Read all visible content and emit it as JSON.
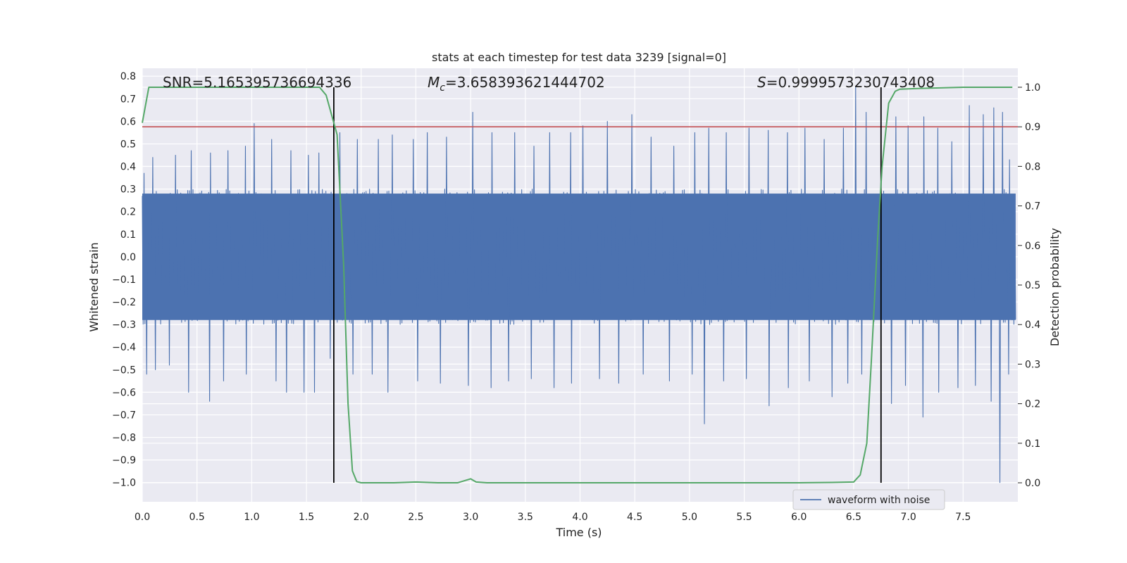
{
  "chart_data": {
    "type": "line",
    "title": "stats at each timestep for test data 3239 [signal=0]",
    "xlabel": "Time (s)",
    "ylabel": "Whitened strain",
    "y2label": "Detection probability",
    "xlim": [
      0.0,
      8.0
    ],
    "ylim": [
      -1.085,
      0.835
    ],
    "y2lim": [
      -0.048,
      1.048
    ],
    "grid": true,
    "x_ticks": [
      "0.0",
      "0.5",
      "1.0",
      "1.5",
      "2.0",
      "2.5",
      "3.0",
      "3.5",
      "4.0",
      "4.5",
      "5.0",
      "5.5",
      "6.0",
      "6.5",
      "7.0",
      "7.5"
    ],
    "y_ticks": [
      "0.8",
      "0.7",
      "0.6",
      "0.5",
      "0.4",
      "0.3",
      "0.2",
      "0.1",
      "0.0",
      "-0.1",
      "-0.2",
      "-0.3",
      "-0.4",
      "-0.5",
      "-0.6",
      "-0.7",
      "-0.8",
      "-0.9",
      "-1.0"
    ],
    "y2_ticks": [
      "1.0",
      "0.9",
      "0.8",
      "0.7",
      "0.6",
      "0.5",
      "0.4",
      "0.3",
      "0.2",
      "0.1",
      "0.0"
    ],
    "annotations": {
      "snr": "SNR=5.165395736694336",
      "mc_symbol": "M",
      "mc_sub": "c",
      "mc_value": "=3.658393621444702",
      "s_symbol": "S",
      "s_value": "=0.9999573230743408"
    },
    "legend": {
      "label": "waveform with noise",
      "position": "bottom-right"
    },
    "threshold_line": {
      "axis": "right",
      "value": 0.9,
      "color": "#c44e52"
    },
    "vertical_lines": [
      1.75,
      6.75
    ],
    "strain_series": {
      "name": "waveform with noise",
      "color": "#4c72b0",
      "n_samples": 1000,
      "envelope": [
        0.28,
        -0.28
      ],
      "spikes": [
        {
          "t": 0.02,
          "v": 0.37
        },
        {
          "t": 0.1,
          "v": 0.44
        },
        {
          "t": 0.3,
          "v": 0.45
        },
        {
          "t": 0.45,
          "v": 0.47
        },
        {
          "t": 0.62,
          "v": 0.46
        },
        {
          "t": 0.78,
          "v": 0.47
        },
        {
          "t": 0.95,
          "v": 0.49
        },
        {
          "t": 1.02,
          "v": 0.59
        },
        {
          "t": 1.18,
          "v": 0.52
        },
        {
          "t": 1.35,
          "v": 0.47
        },
        {
          "t": 1.52,
          "v": 0.45
        },
        {
          "t": 1.62,
          "v": 0.46
        },
        {
          "t": 1.8,
          "v": 0.55
        },
        {
          "t": 1.97,
          "v": 0.52
        },
        {
          "t": 2.15,
          "v": 0.52
        },
        {
          "t": 2.28,
          "v": 0.54
        },
        {
          "t": 2.47,
          "v": 0.52
        },
        {
          "t": 2.6,
          "v": 0.55
        },
        {
          "t": 2.78,
          "v": 0.53
        },
        {
          "t": 3.02,
          "v": 0.64
        },
        {
          "t": 3.2,
          "v": 0.55
        },
        {
          "t": 3.4,
          "v": 0.55
        },
        {
          "t": 3.58,
          "v": 0.49
        },
        {
          "t": 3.72,
          "v": 0.55
        },
        {
          "t": 3.92,
          "v": 0.55
        },
        {
          "t": 4.03,
          "v": 0.58
        },
        {
          "t": 4.25,
          "v": 0.6
        },
        {
          "t": 4.47,
          "v": 0.63
        },
        {
          "t": 4.65,
          "v": 0.53
        },
        {
          "t": 4.85,
          "v": 0.49
        },
        {
          "t": 5.05,
          "v": 0.55
        },
        {
          "t": 5.18,
          "v": 0.57
        },
        {
          "t": 5.33,
          "v": 0.55
        },
        {
          "t": 5.55,
          "v": 0.57
        },
        {
          "t": 5.72,
          "v": 0.56
        },
        {
          "t": 5.9,
          "v": 0.55
        },
        {
          "t": 6.06,
          "v": 0.57
        },
        {
          "t": 6.23,
          "v": 0.52
        },
        {
          "t": 6.4,
          "v": 0.57
        },
        {
          "t": 6.52,
          "v": 0.75
        },
        {
          "t": 6.62,
          "v": 0.64
        },
        {
          "t": 6.88,
          "v": 0.62
        },
        {
          "t": 7.0,
          "v": 0.58
        },
        {
          "t": 7.14,
          "v": 0.62
        },
        {
          "t": 7.27,
          "v": 0.57
        },
        {
          "t": 7.4,
          "v": 0.51
        },
        {
          "t": 7.55,
          "v": 0.67
        },
        {
          "t": 7.68,
          "v": 0.63
        },
        {
          "t": 7.78,
          "v": 0.66
        },
        {
          "t": 7.86,
          "v": 0.64
        },
        {
          "t": 7.93,
          "v": 0.43
        },
        {
          "t": 0.04,
          "v": -0.52
        },
        {
          "t": 0.12,
          "v": -0.5
        },
        {
          "t": 0.25,
          "v": -0.48
        },
        {
          "t": 0.42,
          "v": -0.6
        },
        {
          "t": 0.62,
          "v": -0.64
        },
        {
          "t": 0.75,
          "v": -0.55
        },
        {
          "t": 0.95,
          "v": -0.52
        },
        {
          "t": 1.22,
          "v": -0.55
        },
        {
          "t": 1.32,
          "v": -0.6
        },
        {
          "t": 1.48,
          "v": -0.6
        },
        {
          "t": 1.57,
          "v": -0.6
        },
        {
          "t": 1.72,
          "v": -0.45
        },
        {
          "t": 1.92,
          "v": -0.52
        },
        {
          "t": 2.1,
          "v": -0.52
        },
        {
          "t": 2.25,
          "v": -0.6
        },
        {
          "t": 2.52,
          "v": -0.55
        },
        {
          "t": 2.72,
          "v": -0.56
        },
        {
          "t": 2.98,
          "v": -0.57
        },
        {
          "t": 3.18,
          "v": -0.58
        },
        {
          "t": 3.35,
          "v": -0.55
        },
        {
          "t": 3.55,
          "v": -0.54
        },
        {
          "t": 3.77,
          "v": -0.58
        },
        {
          "t": 3.92,
          "v": -0.56
        },
        {
          "t": 4.18,
          "v": -0.54
        },
        {
          "t": 4.35,
          "v": -0.56
        },
        {
          "t": 4.58,
          "v": -0.52
        },
        {
          "t": 4.82,
          "v": -0.55
        },
        {
          "t": 5.03,
          "v": -0.52
        },
        {
          "t": 5.13,
          "v": -0.74
        },
        {
          "t": 5.32,
          "v": -0.55
        },
        {
          "t": 5.52,
          "v": -0.54
        },
        {
          "t": 5.73,
          "v": -0.66
        },
        {
          "t": 5.9,
          "v": -0.58
        },
        {
          "t": 6.1,
          "v": -0.55
        },
        {
          "t": 6.3,
          "v": -0.62
        },
        {
          "t": 6.45,
          "v": -0.56
        },
        {
          "t": 6.58,
          "v": -0.52
        },
        {
          "t": 6.85,
          "v": -0.65
        },
        {
          "t": 6.98,
          "v": -0.57
        },
        {
          "t": 7.13,
          "v": -0.71
        },
        {
          "t": 7.28,
          "v": -0.6
        },
        {
          "t": 7.45,
          "v": -0.58
        },
        {
          "t": 7.62,
          "v": -0.57
        },
        {
          "t": 7.75,
          "v": -0.64
        },
        {
          "t": 7.84,
          "v": -1.0
        },
        {
          "t": 7.91,
          "v": -0.52
        }
      ]
    },
    "probability_series": {
      "name": "detection probability",
      "color": "#55a868",
      "x": [
        0.0,
        0.06,
        0.12,
        0.25,
        0.5,
        0.75,
        1.0,
        1.25,
        1.5,
        1.62,
        1.68,
        1.73,
        1.78,
        1.84,
        1.88,
        1.92,
        1.96,
        2.0,
        2.1,
        2.3,
        2.5,
        2.7,
        2.88,
        3.0,
        3.05,
        3.15,
        3.5,
        4.0,
        4.5,
        5.0,
        5.5,
        6.0,
        6.3,
        6.5,
        6.56,
        6.62,
        6.66,
        6.72,
        6.76,
        6.82,
        6.88,
        6.92,
        7.0,
        7.1,
        7.5,
        7.95
      ],
      "y": [
        0.91,
        1.0,
        1.0,
        1.0,
        1.0,
        1.0,
        1.0,
        1.0,
        1.0,
        1.0,
        0.98,
        0.93,
        0.88,
        0.55,
        0.2,
        0.03,
        0.003,
        0.0,
        0.0,
        0.0,
        0.002,
        0.0,
        0.0,
        0.01,
        0.002,
        0.0,
        0.0,
        0.0,
        0.0,
        0.0,
        0.0,
        0.0,
        0.001,
        0.002,
        0.02,
        0.1,
        0.3,
        0.62,
        0.8,
        0.96,
        0.99,
        0.995,
        0.996,
        0.997,
        1.0,
        1.0
      ]
    }
  }
}
